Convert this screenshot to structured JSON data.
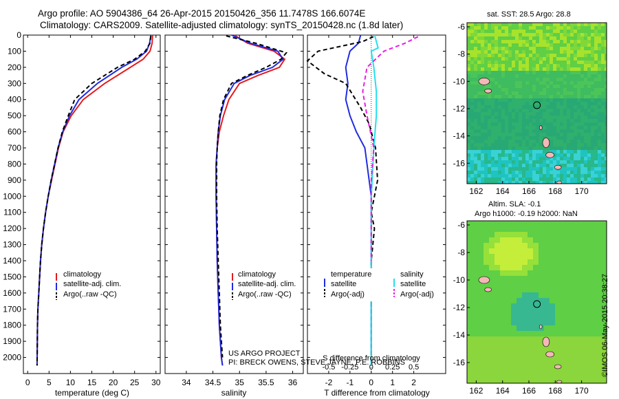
{
  "titles": {
    "line1": "Argo profile: AO 5904386_64 26-Apr-2015 20150426_356 11.7478S 166.6074E",
    "line2": "Climatology: CARS2009. Satellite-adjusted climatology: synTS_20150428.nc (1.8d later)"
  },
  "colors": {
    "climatology": "#e41a1c",
    "satellite": "#1f2be0",
    "argo": "#000000",
    "satellite_sal": "#22e0ee",
    "argo_sal": "#e81ee0"
  },
  "credits": {
    "line1": "US ARGO PROJECT",
    "line2": "PI: BRECK OWENS, STEVE JAYNE, P.E. ROBBINS"
  },
  "imos_stamp": "©IMOS 06-May-2015 20:38:27",
  "maps": {
    "sst": {
      "title": "sat. SST: 28.5 Argo: 28.8"
    },
    "sla": {
      "title1": "Altim. SLA: -0.1",
      "title2": "Argo h1000: -0.19 h2000: NaN"
    },
    "lon_ticks": [
      162,
      164,
      166,
      168,
      170
    ],
    "lat_ticks": [
      -6,
      -8,
      -10,
      -12,
      -14,
      -16
    ],
    "lon_range": [
      161.3,
      171.9
    ],
    "lat_range": [
      -17.5,
      -5.7
    ],
    "argo_position": {
      "lon": 166.6074,
      "lat": -11.7478
    }
  },
  "chart_data": [
    {
      "type": "line",
      "title": "",
      "xlabel": "temperature (deg C)",
      "ylabel": "",
      "xlim": [
        -1,
        31
      ],
      "ylim": [
        2100,
        0
      ],
      "x_ticks": [
        0,
        5,
        10,
        15,
        20,
        25,
        30
      ],
      "y_ticks": [
        0,
        100,
        200,
        300,
        400,
        500,
        600,
        700,
        800,
        900,
        1000,
        1100,
        1200,
        1300,
        1400,
        1500,
        1600,
        1700,
        1800,
        1900,
        2000
      ],
      "legend": [
        "climatology",
        "satellite-adj. clim.",
        "Argo(..raw -QC)"
      ],
      "series": [
        {
          "name": "climatology",
          "x": [
            29.2,
            29.1,
            28.6,
            27.0,
            24.0,
            18.0,
            13.0,
            10.2,
            8.3,
            7.2,
            6.4,
            5.6,
            4.8,
            4.2,
            3.7,
            3.3,
            3.0,
            2.8,
            2.6,
            2.4,
            2.3,
            2.2
          ],
          "y": [
            0,
            50,
            100,
            150,
            200,
            300,
            400,
            500,
            600,
            700,
            800,
            900,
            1000,
            1100,
            1200,
            1300,
            1400,
            1500,
            1600,
            1700,
            1800,
            2050
          ]
        },
        {
          "name": "satellite-adj. clim.",
          "x": [
            28.8,
            28.5,
            27.8,
            25.5,
            22.0,
            16.3,
            12.0,
            9.8,
            8.2,
            7.1,
            6.3,
            5.5,
            4.8,
            4.2,
            3.7,
            3.3,
            3.0,
            2.8,
            2.6,
            2.4,
            2.3,
            2.2
          ],
          "y": [
            0,
            50,
            100,
            150,
            200,
            300,
            400,
            500,
            600,
            700,
            800,
            900,
            1000,
            1100,
            1200,
            1300,
            1400,
            1500,
            1600,
            1700,
            1800,
            2050
          ]
        },
        {
          "name": "Argo(..raw -QC)",
          "x": [
            28.8,
            28.6,
            27.5,
            25.0,
            21.0,
            15.0,
            11.0,
            9.5,
            8.1,
            7.1,
            6.3,
            5.5,
            4.8,
            4.2,
            3.7,
            3.3,
            3.0,
            2.8,
            2.6,
            2.4,
            2.3,
            2.2
          ],
          "y": [
            5,
            50,
            100,
            150,
            200,
            300,
            400,
            500,
            600,
            700,
            800,
            900,
            1000,
            1100,
            1200,
            1300,
            1400,
            1500,
            1600,
            1700,
            1800,
            2050
          ]
        }
      ]
    },
    {
      "type": "line",
      "title": "",
      "xlabel": "salinity",
      "ylabel": "",
      "xlim": [
        33.6,
        36.2
      ],
      "ylim": [
        2100,
        0
      ],
      "x_ticks": [
        34,
        34.5,
        35,
        35.5,
        36
      ],
      "y_ticks": [],
      "legend": [
        "climatology",
        "satellite-adj. clim.",
        "Argo(..raw -QC)"
      ],
      "series": [
        {
          "name": "climatology",
          "x": [
            34.9,
            35.15,
            35.65,
            35.85,
            35.75,
            35.35,
            35.0,
            34.8,
            34.7,
            34.62,
            34.58,
            34.56,
            34.56,
            34.57,
            34.58,
            34.6,
            34.62,
            34.64,
            34.66,
            34.68
          ],
          "y": [
            0,
            50,
            100,
            150,
            200,
            250,
            300,
            400,
            500,
            600,
            700,
            800,
            1000,
            1200,
            1400,
            1600,
            1800,
            1900,
            2000,
            2050
          ]
        },
        {
          "name": "satellite-adj. clim.",
          "x": [
            34.85,
            35.2,
            35.72,
            35.82,
            35.62,
            35.2,
            34.9,
            34.72,
            34.64,
            34.6,
            34.58,
            34.56,
            34.56,
            34.57,
            34.58,
            34.6,
            34.62,
            34.64,
            34.66,
            34.68
          ],
          "y": [
            0,
            50,
            100,
            150,
            200,
            250,
            300,
            400,
            500,
            600,
            700,
            800,
            1000,
            1200,
            1400,
            1600,
            1800,
            1900,
            2000,
            2050
          ]
        },
        {
          "name": "Argo(..raw -QC)",
          "x": [
            34.75,
            35.3,
            35.88,
            35.78,
            35.5,
            35.15,
            34.85,
            34.7,
            34.63,
            34.6,
            34.58,
            34.57,
            34.57,
            34.58,
            34.6,
            34.62,
            34.64,
            34.66,
            34.68
          ],
          "y": [
            5,
            50,
            110,
            150,
            200,
            250,
            300,
            400,
            500,
            600,
            700,
            800,
            1000,
            1200,
            1400,
            1600,
            1800,
            1900,
            2000
          ]
        }
      ]
    },
    {
      "type": "line",
      "title": "",
      "xlabel": "T difference from climatology",
      "xlabel_top": "S difference from climatology",
      "ylabel": "",
      "xlim": [
        -3,
        3.5
      ],
      "xlim_top": [
        -0.75,
        0.875
      ],
      "ylim": [
        2100,
        0
      ],
      "x_ticks": [
        -2,
        -1,
        0,
        1,
        2
      ],
      "x_ticks_top": [
        -0.5,
        -0.25,
        0,
        0.25,
        0.5
      ],
      "y_ticks": [],
      "legend_title_left": "temperature",
      "legend_title_right": "salinity",
      "legend": [
        "satellite",
        "Argo(-adj)",
        "satellite",
        "Argo(-adj)"
      ],
      "series": [
        {
          "name": "temperature satellite",
          "x": [
            -0.5,
            -0.6,
            -1.0,
            -1.2,
            -1.1,
            -1.2,
            -1.0,
            -0.7,
            -0.3,
            0.0,
            0.0,
            0.0
          ],
          "y": [
            0,
            50,
            100,
            200,
            300,
            400,
            500,
            600,
            700,
            1000,
            1400,
            2050
          ]
        },
        {
          "name": "temperature Argo(-adj)",
          "x": [
            0.1,
            -0.4,
            -2.5,
            -3.0,
            -2.2,
            -1.2,
            -0.5,
            -0.1,
            0.2,
            0.3,
            0.0,
            0.15,
            0.0,
            0.0
          ],
          "y": [
            10,
            40,
            100,
            160,
            240,
            300,
            450,
            550,
            700,
            900,
            1100,
            1200,
            1400,
            2050
          ]
        },
        {
          "name": "salinity satellite",
          "x": [
            0.04,
            0.06,
            0.08,
            0.0,
            0.03,
            0.06,
            0.06,
            0.03,
            0.0,
            0.0
          ],
          "y": [
            0,
            40,
            80,
            100,
            200,
            350,
            500,
            700,
            1000,
            2050
          ]
        },
        {
          "name": "salinity Argo(-adj)",
          "x": [
            0.55,
            0.4,
            0.15,
            -0.05,
            -0.1,
            -0.05,
            0.03,
            0.0,
            0.0
          ],
          "y": [
            10,
            50,
            100,
            200,
            350,
            500,
            700,
            900,
            1400
          ]
        }
      ]
    }
  ]
}
